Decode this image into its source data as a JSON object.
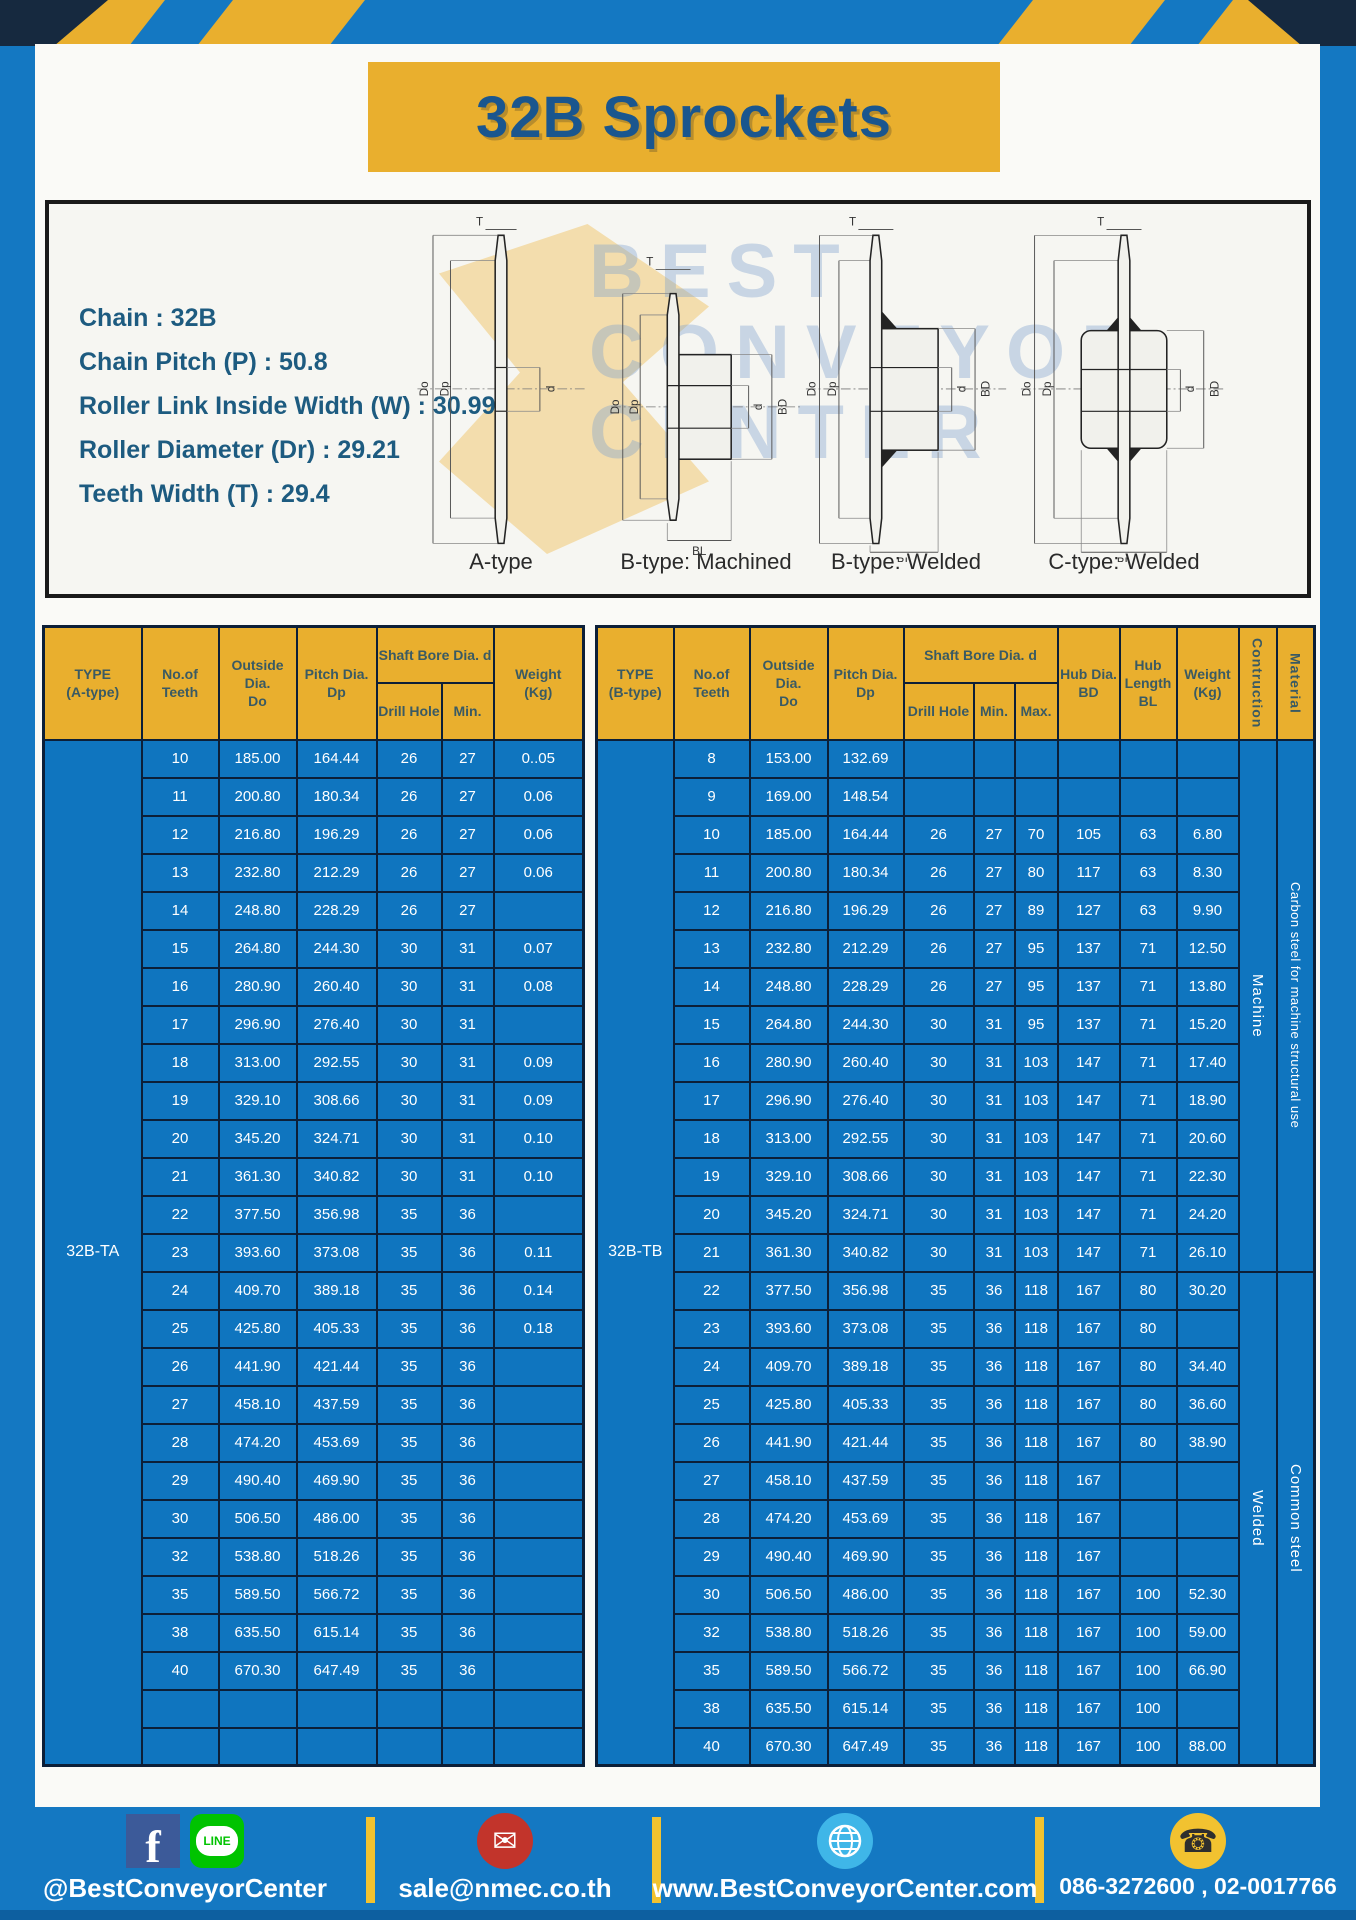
{
  "title": "32B Sprockets",
  "specs": {
    "lines": [
      "Chain : 32B",
      "Chain Pitch (P) : 50.8",
      "Roller Link Inside Width (W) : 30.99",
      "Roller Diameter (Dr) : 29.21",
      "Teeth Width (T) : 29.4"
    ]
  },
  "diagram": {
    "captions": [
      "A-type",
      "B-type: Machined",
      "B-type: Welded",
      "C-type: Welded"
    ],
    "labels": {
      "t": "T",
      "do": "Do",
      "dp": "Dp",
      "d": "d",
      "bd": "BD",
      "bl": "BL"
    },
    "watermark": "BEST CONVEYOR CENTER"
  },
  "table_a": {
    "header": {
      "type_l1": "TYPE",
      "type_l2": "(A-type)",
      "teeth_l1": "No.of",
      "teeth_l2": "Teeth",
      "outside_l1": "Outside",
      "outside_l2": "Dia.",
      "outside_l3": "Do",
      "pitch_l1": "Pitch Dia.",
      "pitch_l2": "Dp",
      "shaft_group": "Shaft Bore Dia. d",
      "drill": "Drill Hole",
      "min": "Min.",
      "weight_l1": "Weight",
      "weight_l2": "(Kg)"
    },
    "type_value": "32B-TA",
    "rows": [
      [
        "10",
        "185.00",
        "164.44",
        "26",
        "27",
        "0..05"
      ],
      [
        "11",
        "200.80",
        "180.34",
        "26",
        "27",
        "0.06"
      ],
      [
        "12",
        "216.80",
        "196.29",
        "26",
        "27",
        "0.06"
      ],
      [
        "13",
        "232.80",
        "212.29",
        "26",
        "27",
        "0.06"
      ],
      [
        "14",
        "248.80",
        "228.29",
        "26",
        "27",
        ""
      ],
      [
        "15",
        "264.80",
        "244.30",
        "30",
        "31",
        "0.07"
      ],
      [
        "16",
        "280.90",
        "260.40",
        "30",
        "31",
        "0.08"
      ],
      [
        "17",
        "296.90",
        "276.40",
        "30",
        "31",
        ""
      ],
      [
        "18",
        "313.00",
        "292.55",
        "30",
        "31",
        "0.09"
      ],
      [
        "19",
        "329.10",
        "308.66",
        "30",
        "31",
        "0.09"
      ],
      [
        "20",
        "345.20",
        "324.71",
        "30",
        "31",
        "0.10"
      ],
      [
        "21",
        "361.30",
        "340.82",
        "30",
        "31",
        "0.10"
      ],
      [
        "22",
        "377.50",
        "356.98",
        "35",
        "36",
        ""
      ],
      [
        "23",
        "393.60",
        "373.08",
        "35",
        "36",
        "0.11"
      ],
      [
        "24",
        "409.70",
        "389.18",
        "35",
        "36",
        "0.14"
      ],
      [
        "25",
        "425.80",
        "405.33",
        "35",
        "36",
        "0.18"
      ],
      [
        "26",
        "441.90",
        "421.44",
        "35",
        "36",
        ""
      ],
      [
        "27",
        "458.10",
        "437.59",
        "35",
        "36",
        ""
      ],
      [
        "28",
        "474.20",
        "453.69",
        "35",
        "36",
        ""
      ],
      [
        "29",
        "490.40",
        "469.90",
        "35",
        "36",
        ""
      ],
      [
        "30",
        "506.50",
        "486.00",
        "35",
        "36",
        ""
      ],
      [
        "32",
        "538.80",
        "518.26",
        "35",
        "36",
        ""
      ],
      [
        "35",
        "589.50",
        "566.72",
        "35",
        "36",
        ""
      ],
      [
        "38",
        "635.50",
        "615.14",
        "35",
        "36",
        ""
      ],
      [
        "40",
        "670.30",
        "647.49",
        "35",
        "36",
        ""
      ],
      [
        "",
        "",
        "",
        "",
        "",
        ""
      ],
      [
        "",
        "",
        "",
        "",
        "",
        ""
      ]
    ]
  },
  "table_b": {
    "header": {
      "type_l1": "TYPE",
      "type_l2": "(B-type)",
      "teeth_l1": "No.of",
      "teeth_l2": "Teeth",
      "outside_l1": "Outside",
      "outside_l2": "Dia.",
      "outside_l3": "Do",
      "pitch_l1": "Pitch Dia.",
      "pitch_l2": "Dp",
      "shaft_group": "Shaft Bore Dia. d",
      "drill": "Drill Hole",
      "min": "Min.",
      "max": "Max.",
      "hub_dia_l1": "Hub Dia.",
      "hub_dia_l2": "BD",
      "hub_len_l1": "Hub",
      "hub_len_l2": "Length",
      "hub_len_l3": "BL",
      "weight_l1": "Weight",
      "weight_l2": "(Kg)",
      "construction": "Contruction",
      "material": "Material"
    },
    "type_value": "32B-TB",
    "construction_groups": [
      {
        "label": "Machine",
        "rows": 14
      },
      {
        "label": "Welded",
        "rows": 13
      }
    ],
    "material_groups": [
      {
        "label": "Carbon steel for machine structural use",
        "rows": 14
      },
      {
        "label": "Common steel",
        "rows": 13
      }
    ],
    "rows": [
      [
        "8",
        "153.00",
        "132.69",
        "",
        "",
        "",
        "",
        "",
        ""
      ],
      [
        "9",
        "169.00",
        "148.54",
        "",
        "",
        "",
        "",
        "",
        ""
      ],
      [
        "10",
        "185.00",
        "164.44",
        "26",
        "27",
        "70",
        "105",
        "63",
        "6.80"
      ],
      [
        "11",
        "200.80",
        "180.34",
        "26",
        "27",
        "80",
        "117",
        "63",
        "8.30"
      ],
      [
        "12",
        "216.80",
        "196.29",
        "26",
        "27",
        "89",
        "127",
        "63",
        "9.90"
      ],
      [
        "13",
        "232.80",
        "212.29",
        "26",
        "27",
        "95",
        "137",
        "71",
        "12.50"
      ],
      [
        "14",
        "248.80",
        "228.29",
        "26",
        "27",
        "95",
        "137",
        "71",
        "13.80"
      ],
      [
        "15",
        "264.80",
        "244.30",
        "30",
        "31",
        "95",
        "137",
        "71",
        "15.20"
      ],
      [
        "16",
        "280.90",
        "260.40",
        "30",
        "31",
        "103",
        "147",
        "71",
        "17.40"
      ],
      [
        "17",
        "296.90",
        "276.40",
        "30",
        "31",
        "103",
        "147",
        "71",
        "18.90"
      ],
      [
        "18",
        "313.00",
        "292.55",
        "30",
        "31",
        "103",
        "147",
        "71",
        "20.60"
      ],
      [
        "19",
        "329.10",
        "308.66",
        "30",
        "31",
        "103",
        "147",
        "71",
        "22.30"
      ],
      [
        "20",
        "345.20",
        "324.71",
        "30",
        "31",
        "103",
        "147",
        "71",
        "24.20"
      ],
      [
        "21",
        "361.30",
        "340.82",
        "30",
        "31",
        "103",
        "147",
        "71",
        "26.10"
      ],
      [
        "22",
        "377.50",
        "356.98",
        "35",
        "36",
        "118",
        "167",
        "80",
        "30.20"
      ],
      [
        "23",
        "393.60",
        "373.08",
        "35",
        "36",
        "118",
        "167",
        "80",
        ""
      ],
      [
        "24",
        "409.70",
        "389.18",
        "35",
        "36",
        "118",
        "167",
        "80",
        "34.40"
      ],
      [
        "25",
        "425.80",
        "405.33",
        "35",
        "36",
        "118",
        "167",
        "80",
        "36.60"
      ],
      [
        "26",
        "441.90",
        "421.44",
        "35",
        "36",
        "118",
        "167",
        "80",
        "38.90"
      ],
      [
        "27",
        "458.10",
        "437.59",
        "35",
        "36",
        "118",
        "167",
        "",
        ""
      ],
      [
        "28",
        "474.20",
        "453.69",
        "35",
        "36",
        "118",
        "167",
        "",
        ""
      ],
      [
        "29",
        "490.40",
        "469.90",
        "35",
        "36",
        "118",
        "167",
        "",
        ""
      ],
      [
        "30",
        "506.50",
        "486.00",
        "35",
        "36",
        "118",
        "167",
        "100",
        "52.30"
      ],
      [
        "32",
        "538.80",
        "518.26",
        "35",
        "36",
        "118",
        "167",
        "100",
        "59.00"
      ],
      [
        "35",
        "589.50",
        "566.72",
        "35",
        "36",
        "118",
        "167",
        "100",
        "66.90"
      ],
      [
        "38",
        "635.50",
        "615.14",
        "35",
        "36",
        "118",
        "167",
        "100",
        ""
      ],
      [
        "40",
        "670.30",
        "647.49",
        "35",
        "36",
        "118",
        "167",
        "100",
        "88.00"
      ]
    ]
  },
  "footer": {
    "items": [
      {
        "icons": [
          "facebook-icon",
          "line-icon"
        ],
        "text": "@BestConveyorCenter"
      },
      {
        "icons": [
          "email-icon"
        ],
        "text": "sale@nmec.co.th"
      },
      {
        "icons": [
          "globe-icon"
        ],
        "text": "www.BestConveyorCenter.com"
      },
      {
        "icons": [
          "phone-icon"
        ],
        "text": "086-3272600 , 02-0017766"
      }
    ]
  },
  "colors": {
    "frame_blue": "#1478C2",
    "row_blue": "#0F75BF",
    "accent_yellow": "#E9AF2E",
    "border_navy": "#0C1F38",
    "title_blue": "#1A568E",
    "spec_text": "#1D5B80"
  }
}
